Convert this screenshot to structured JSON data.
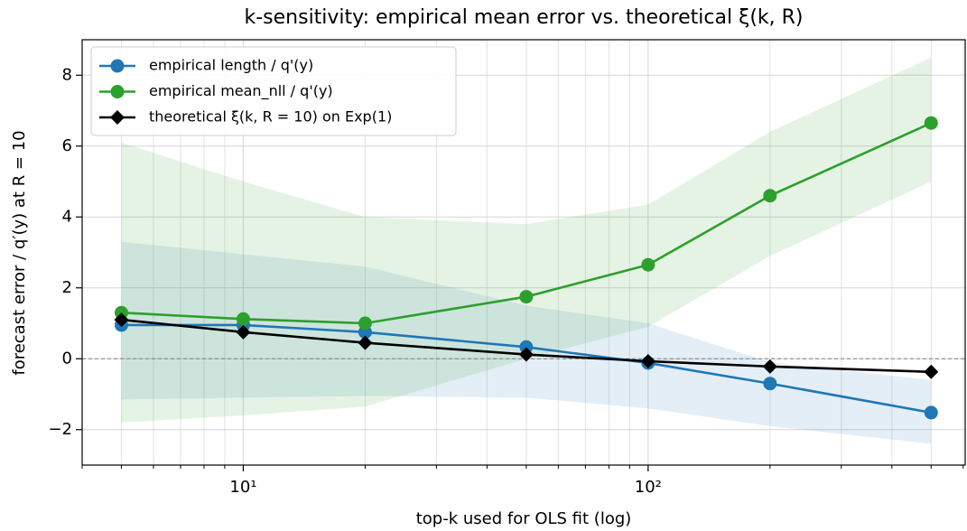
{
  "chart_data": {
    "type": "line",
    "title": "k-sensitivity: empirical mean error vs. theoretical ξ(k, R)",
    "x_label": "top-k used for OLS fit (log)",
    "y_label": "forecast error / q′(y) at R = 10",
    "x": [
      5,
      10,
      20,
      50,
      100,
      200,
      500
    ],
    "x_scale": "log",
    "xlim": [
      4,
      610
    ],
    "ylim": [
      -3,
      9
    ],
    "xticks": [
      {
        "value": 10,
        "label": "10¹"
      },
      {
        "value": 100,
        "label": "10²"
      }
    ],
    "xticks_minor": [
      4,
      5,
      6,
      7,
      8,
      9,
      20,
      30,
      40,
      50,
      60,
      70,
      80,
      90,
      200,
      300,
      400,
      500,
      600
    ],
    "yticks": [
      {
        "value": -2,
        "label": "−2"
      },
      0,
      2,
      4,
      6,
      8
    ],
    "grid": true,
    "hline": 0,
    "legend": "upper left",
    "series": [
      {
        "name": "empirical length / q'(y)",
        "color": "#1f77b4",
        "marker": "circle",
        "values": [
          0.95,
          0.95,
          0.75,
          0.33,
          -0.12,
          -0.7,
          -1.52
        ],
        "upper": [
          3.3,
          2.95,
          2.6,
          1.5,
          1.0,
          -0.1,
          -0.6
        ],
        "lower": [
          -1.15,
          -1.1,
          -1.05,
          -1.1,
          -1.4,
          -1.9,
          -2.4
        ]
      },
      {
        "name": "empirical mean_nll / q'(y)",
        "color": "#2ca02c",
        "marker": "circle",
        "values": [
          1.3,
          1.12,
          1.0,
          1.75,
          2.65,
          4.6,
          6.65
        ],
        "upper": [
          6.1,
          5.0,
          4.0,
          3.8,
          4.35,
          6.4,
          8.5
        ],
        "lower": [
          -1.8,
          -1.6,
          -1.35,
          0.0,
          0.9,
          2.9,
          5.0
        ]
      },
      {
        "name": "theoretical ξ(k, R = 10) on Exp(1)",
        "color": "#000000",
        "marker": "diamond",
        "values": [
          1.1,
          0.75,
          0.45,
          0.12,
          -0.07,
          -0.22,
          -0.37
        ]
      }
    ]
  }
}
